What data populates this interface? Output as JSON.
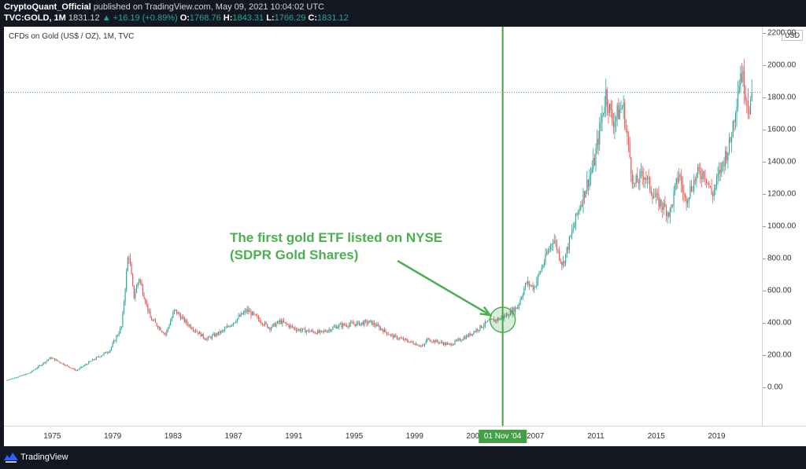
{
  "header": {
    "publisher": "CryptoQuant_Official",
    "publish_info": "published on TradingView.com, May 09, 2021 10:04:02 UTC",
    "symbol": "TVC:GOLD, 1M",
    "last_price": "1831.12",
    "change": "▲ +16.19 (+0.89%)",
    "open_label": "O:",
    "open": "1768.76",
    "high_label": "H:",
    "high": "1843.31",
    "low_label": "L:",
    "low": "1766.29",
    "close_label": "C:",
    "close": "1831.12"
  },
  "chart": {
    "title": "CFDs on Gold (US$ / OZ), 1M, TVC",
    "currency": "USD",
    "annotation_line1": "The first gold ETF listed on NYSE",
    "annotation_line2": "(SDPR Gold Shares)",
    "crosshair_label": "01 Nov '04",
    "last_price": 1831.12
  },
  "colors": {
    "up": "#26a69a",
    "down": "#ef5350",
    "annotation": "#4caf50",
    "background": "#ffffff",
    "frame": "#131722"
  },
  "footer": {
    "brand": "TradingView"
  },
  "chart_data": {
    "type": "candlestick",
    "title": "CFDs on Gold (US$ / OZ), 1M, TVC",
    "ylabel": "USD",
    "ylim": [
      -150,
      2200
    ],
    "y_ticks": [
      {
        "label": "2200.00",
        "value": 2200
      },
      {
        "label": "2000.00",
        "value": 2000
      },
      {
        "label": "1800.00",
        "value": 1800
      },
      {
        "label": "1600.00",
        "value": 1600
      },
      {
        "label": "1400.00",
        "value": 1400
      },
      {
        "label": "1200.00",
        "value": 1200
      },
      {
        "label": "1000.00",
        "value": 1000
      },
      {
        "label": "800.00",
        "value": 800
      },
      {
        "label": "600.00",
        "value": 600
      },
      {
        "label": "400.00",
        "value": 400
      },
      {
        "label": "200.00",
        "value": 200
      },
      {
        "label": "0.00",
        "value": 0
      }
    ],
    "xlim": [
      1971.8,
      2022.0
    ],
    "x_ticks": [
      {
        "label": "1975",
        "value": 1975
      },
      {
        "label": "1979",
        "value": 1979
      },
      {
        "label": "1983",
        "value": 1983
      },
      {
        "label": "1987",
        "value": 1987
      },
      {
        "label": "1991",
        "value": 1991
      },
      {
        "label": "1995",
        "value": 1995
      },
      {
        "label": "1999",
        "value": 1999
      },
      {
        "label": "2003",
        "value": 2003
      },
      {
        "label": "2007",
        "value": 2007
      },
      {
        "label": "2011",
        "value": 2011
      },
      {
        "label": "2015",
        "value": 2015
      },
      {
        "label": "2019",
        "value": 2019
      }
    ],
    "key_points": [
      {
        "x": 1972.0,
        "y": 46
      },
      {
        "x": 1973.5,
        "y": 90
      },
      {
        "x": 1974.9,
        "y": 185
      },
      {
        "x": 1976.6,
        "y": 105
      },
      {
        "x": 1977.5,
        "y": 160
      },
      {
        "x": 1978.8,
        "y": 230
      },
      {
        "x": 1979.6,
        "y": 380
      },
      {
        "x": 1980.05,
        "y": 850
      },
      {
        "x": 1980.4,
        "y": 560
      },
      {
        "x": 1980.75,
        "y": 680
      },
      {
        "x": 1981.5,
        "y": 430
      },
      {
        "x": 1982.5,
        "y": 330
      },
      {
        "x": 1983.1,
        "y": 480
      },
      {
        "x": 1983.9,
        "y": 400
      },
      {
        "x": 1985.2,
        "y": 300
      },
      {
        "x": 1986.3,
        "y": 350
      },
      {
        "x": 1987.9,
        "y": 480
      },
      {
        "x": 1988.7,
        "y": 420
      },
      {
        "x": 1989.4,
        "y": 370
      },
      {
        "x": 1990.1,
        "y": 410
      },
      {
        "x": 1991.2,
        "y": 360
      },
      {
        "x": 1992.8,
        "y": 340
      },
      {
        "x": 1994.0,
        "y": 385
      },
      {
        "x": 1996.1,
        "y": 405
      },
      {
        "x": 1997.5,
        "y": 320
      },
      {
        "x": 1999.6,
        "y": 255
      },
      {
        "x": 1999.8,
        "y": 300
      },
      {
        "x": 2001.3,
        "y": 265
      },
      {
        "x": 2002.5,
        "y": 320
      },
      {
        "x": 2003.9,
        "y": 410
      },
      {
        "x": 2004.8,
        "y": 430
      },
      {
        "x": 2005.8,
        "y": 500
      },
      {
        "x": 2006.4,
        "y": 650
      },
      {
        "x": 2006.9,
        "y": 620
      },
      {
        "x": 2008.2,
        "y": 930
      },
      {
        "x": 2008.8,
        "y": 760
      },
      {
        "x": 2009.9,
        "y": 1120
      },
      {
        "x": 2010.9,
        "y": 1400
      },
      {
        "x": 2011.67,
        "y": 1830
      },
      {
        "x": 2012.1,
        "y": 1650
      },
      {
        "x": 2012.8,
        "y": 1750
      },
      {
        "x": 2013.5,
        "y": 1250
      },
      {
        "x": 2014.2,
        "y": 1330
      },
      {
        "x": 2014.9,
        "y": 1180
      },
      {
        "x": 2015.9,
        "y": 1080
      },
      {
        "x": 2016.5,
        "y": 1330
      },
      {
        "x": 2016.9,
        "y": 1160
      },
      {
        "x": 2017.7,
        "y": 1320
      },
      {
        "x": 2018.2,
        "y": 1340
      },
      {
        "x": 2018.7,
        "y": 1190
      },
      {
        "x": 2019.5,
        "y": 1420
      },
      {
        "x": 2019.9,
        "y": 1520
      },
      {
        "x": 2020.6,
        "y": 1970
      },
      {
        "x": 2021.2,
        "y": 1730
      },
      {
        "x": 2021.35,
        "y": 1831
      }
    ],
    "last_price": 1831.12,
    "vertical_marker": {
      "x": 2004.83,
      "label": "01 Nov '04"
    },
    "annotation": {
      "text": [
        "The first gold ETF listed on NYSE",
        "(SDPR Gold Shares)"
      ],
      "target": {
        "x": 2004.83,
        "y": 420
      }
    },
    "grid": false,
    "legend": "none"
  }
}
